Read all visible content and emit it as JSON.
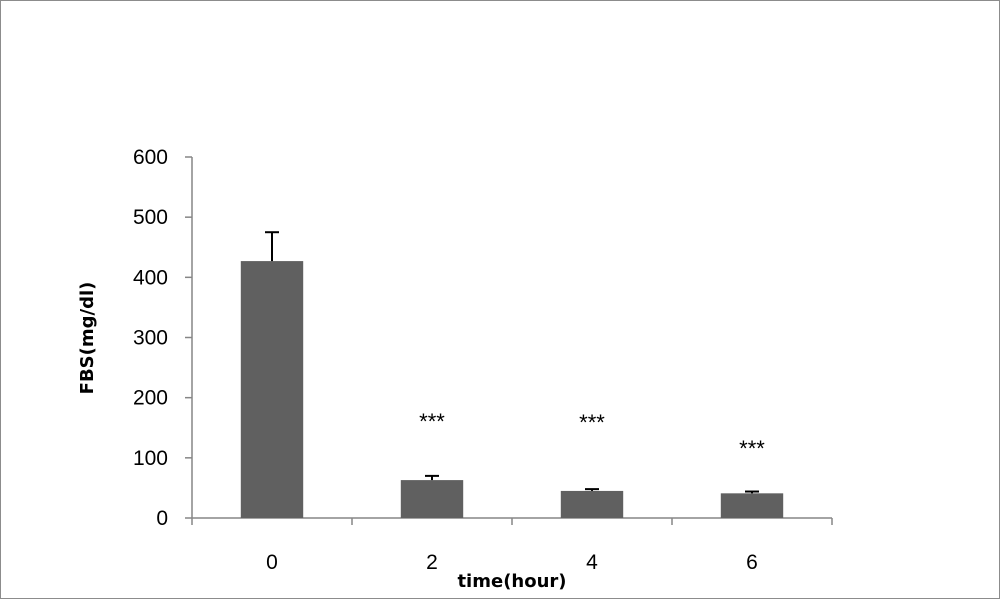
{
  "chart_data": {
    "type": "bar",
    "categories": [
      "0",
      "2",
      "4",
      "6"
    ],
    "values": [
      427,
      63,
      45,
      41
    ],
    "errors": [
      48,
      7,
      3,
      3
    ],
    "annotations": [
      "",
      "***",
      "***",
      "***"
    ],
    "title": "",
    "xlabel": "time(hour)",
    "ylabel": "FBS(mg/dl)",
    "ylim": [
      0,
      600
    ],
    "yticks": [
      0,
      100,
      200,
      300,
      400,
      500,
      600
    ],
    "grid": false,
    "bar_color": "#606060",
    "axis_color": "#868686"
  }
}
